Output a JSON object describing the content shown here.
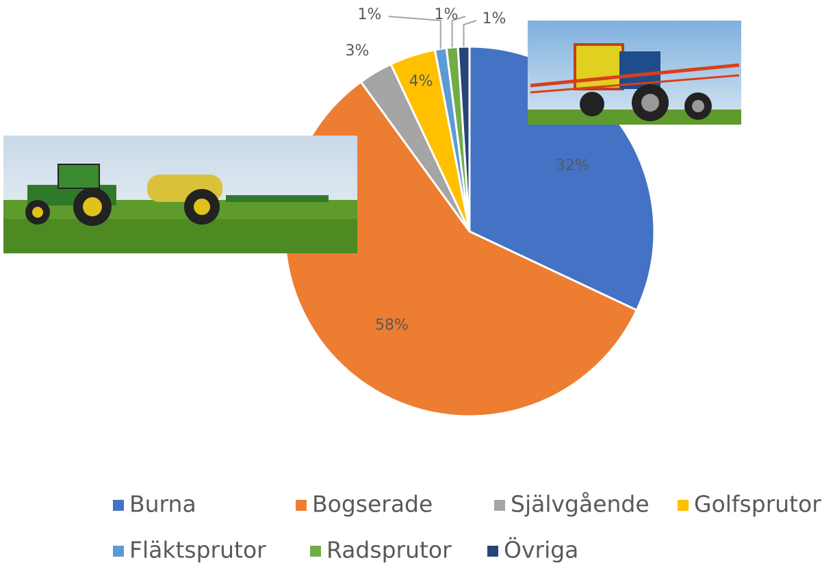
{
  "chart_data": {
    "type": "pie",
    "categories": [
      "Burna",
      "Bogserade",
      "Självgående",
      "Golfsprutor",
      "Fläktsprutor",
      "Radsprutor",
      "Övriga"
    ],
    "values": [
      32,
      58,
      3,
      4,
      1,
      1,
      1
    ],
    "value_labels": [
      "32%",
      "58%",
      "3%",
      "4%",
      "1%",
      "1%",
      "1%"
    ],
    "colors": [
      "#4472c4",
      "#ed7d31",
      "#a5a5a5",
      "#ffc000",
      "#5b9bd5",
      "#70ad47",
      "#264478"
    ],
    "legend": "bottom"
  }
}
